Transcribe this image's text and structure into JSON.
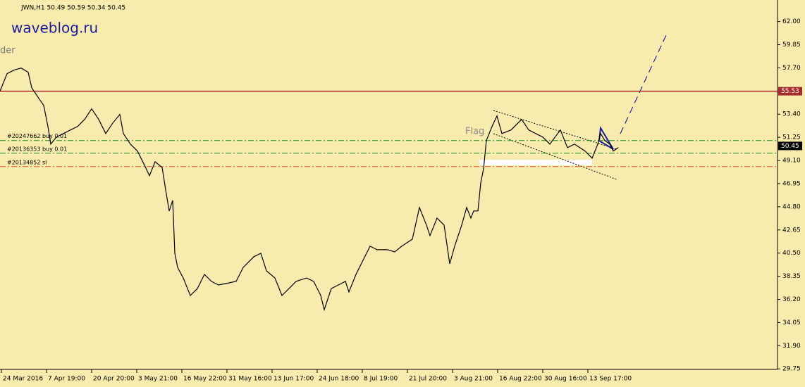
{
  "chart_data": {
    "type": "line",
    "title": "JWN,H1  50.49 50.59 50.34 50.45",
    "watermark": "waveblog.ru",
    "annotations": [
      "der",
      "Flag"
    ],
    "background": "#f7ecae",
    "xlim": [
      0,
      1103
    ],
    "ylim": [
      29.7,
      64.0
    ],
    "xticks": [
      {
        "value": 2,
        "label": "24 Mar 2016"
      },
      {
        "value": 66,
        "label": "7 Apr 19:00"
      },
      {
        "value": 130,
        "label": "20 Apr 20:00"
      },
      {
        "value": 194,
        "label": "3 May 21:00"
      },
      {
        "value": 258,
        "label": "16 May 22:00"
      },
      {
        "value": 322,
        "label": "31 May 16:00"
      },
      {
        "value": 386,
        "label": "13 Jun 17:00"
      },
      {
        "value": 450,
        "label": "24 Jun 18:00"
      },
      {
        "value": 514,
        "label": "8 Jul 19:00"
      },
      {
        "value": 578,
        "label": "21 Jul 20:00"
      },
      {
        "value": 642,
        "label": "3 Aug 21:00"
      },
      {
        "value": 706,
        "label": "16 Aug 22:00"
      },
      {
        "value": 770,
        "label": "30 Aug 16:00"
      },
      {
        "value": 834,
        "label": "13 Sep 17:00"
      }
    ],
    "yticks": [
      {
        "value": 62,
        "label": "62.00"
      },
      {
        "value": 59.85,
        "label": "59.85"
      },
      {
        "value": 57.7,
        "label": "57.70"
      },
      {
        "value": 55.55,
        "label": "55.55"
      },
      {
        "value": 53.4,
        "label": "53.40"
      },
      {
        "value": 51.25,
        "label": "51.25"
      },
      {
        "value": 49.1,
        "label": "49.10"
      },
      {
        "value": 46.95,
        "label": "46.95"
      },
      {
        "value": 44.8,
        "label": "44.80"
      },
      {
        "value": 42.65,
        "label": "42.65"
      },
      {
        "value": 40.5,
        "label": "40.50"
      },
      {
        "value": 38.35,
        "label": "38.35"
      },
      {
        "value": 36.2,
        "label": "36.20"
      },
      {
        "value": 34.05,
        "label": "34.05"
      },
      {
        "value": 31.9,
        "label": "31.90"
      },
      {
        "value": 29.75,
        "label": "29.75"
      }
    ],
    "series": [
      {
        "name": "JWN",
        "color": "#000000",
        "x": [
          0,
          10,
          20,
          30,
          40,
          45,
          55,
          62,
          68,
          72,
          80,
          90,
          100,
          110,
          120,
          130,
          140,
          150,
          160,
          170,
          175,
          185,
          195,
          205,
          212,
          220,
          230,
          235,
          240,
          245,
          248,
          252,
          260,
          270,
          280,
          290,
          300,
          310,
          320,
          335,
          345,
          360,
          370,
          378,
          390,
          400,
          410,
          420,
          435,
          445,
          455,
          460,
          470,
          480,
          490,
          495,
          505,
          515,
          525,
          535,
          550,
          560,
          570,
          585,
          595,
          605,
          610,
          620,
          630,
          638,
          645,
          655,
          662,
          668,
          672,
          678,
          682,
          686,
          690,
          698,
          705,
          712,
          725,
          740,
          750,
          760,
          770,
          780,
          795,
          805,
          815,
          830,
          840,
          848,
          852,
          858,
          865,
          870,
          877
        ],
        "values": [
          55.53,
          57.16,
          57.49,
          57.68,
          57.29,
          55.85,
          54.87,
          54.22,
          52.25,
          50.62,
          51.27,
          51.6,
          51.93,
          52.25,
          52.91,
          53.89,
          52.91,
          51.6,
          52.58,
          53.37,
          51.6,
          50.62,
          49.97,
          48.66,
          47.68,
          48.98,
          48.46,
          46.37,
          44.41,
          45.39,
          40.48,
          39.17,
          38.19,
          36.56,
          37.21,
          38.52,
          37.87,
          37.54,
          37.67,
          37.87,
          39.17,
          40.16,
          40.48,
          38.85,
          38.19,
          36.56,
          37.21,
          37.87,
          38.19,
          37.87,
          36.56,
          35.25,
          37.21,
          37.54,
          37.87,
          36.89,
          38.52,
          39.83,
          41.14,
          40.81,
          40.81,
          40.61,
          41.14,
          41.79,
          44.73,
          43.1,
          42.12,
          43.75,
          43.1,
          39.5,
          41.14,
          43.1,
          44.73,
          43.75,
          44.41,
          44.41,
          47.02,
          48.33,
          50.95,
          52.25,
          53.24,
          51.6,
          51.93,
          52.91,
          51.93,
          51.6,
          51.27,
          50.62,
          51.93,
          50.29,
          50.62,
          49.97,
          49.31,
          50.62,
          51.6,
          50.95,
          50.62,
          49.97,
          50.29
        ]
      }
    ],
    "levels": [
      {
        "value": 55.53,
        "label": "55.53",
        "color": "#a52a2a"
      },
      {
        "value": 50.45,
        "label": "50.45",
        "color": "#000000"
      }
    ],
    "orders": [
      {
        "value": 50.95,
        "label": "#20247662 buy 0.01",
        "color": "#228b22"
      },
      {
        "value": 49.77,
        "label": "#20136353 buy 0.01",
        "color": "#228b22"
      },
      {
        "value": 48.53,
        "label": "#20134852 sl",
        "color": "#e8542c"
      }
    ]
  }
}
